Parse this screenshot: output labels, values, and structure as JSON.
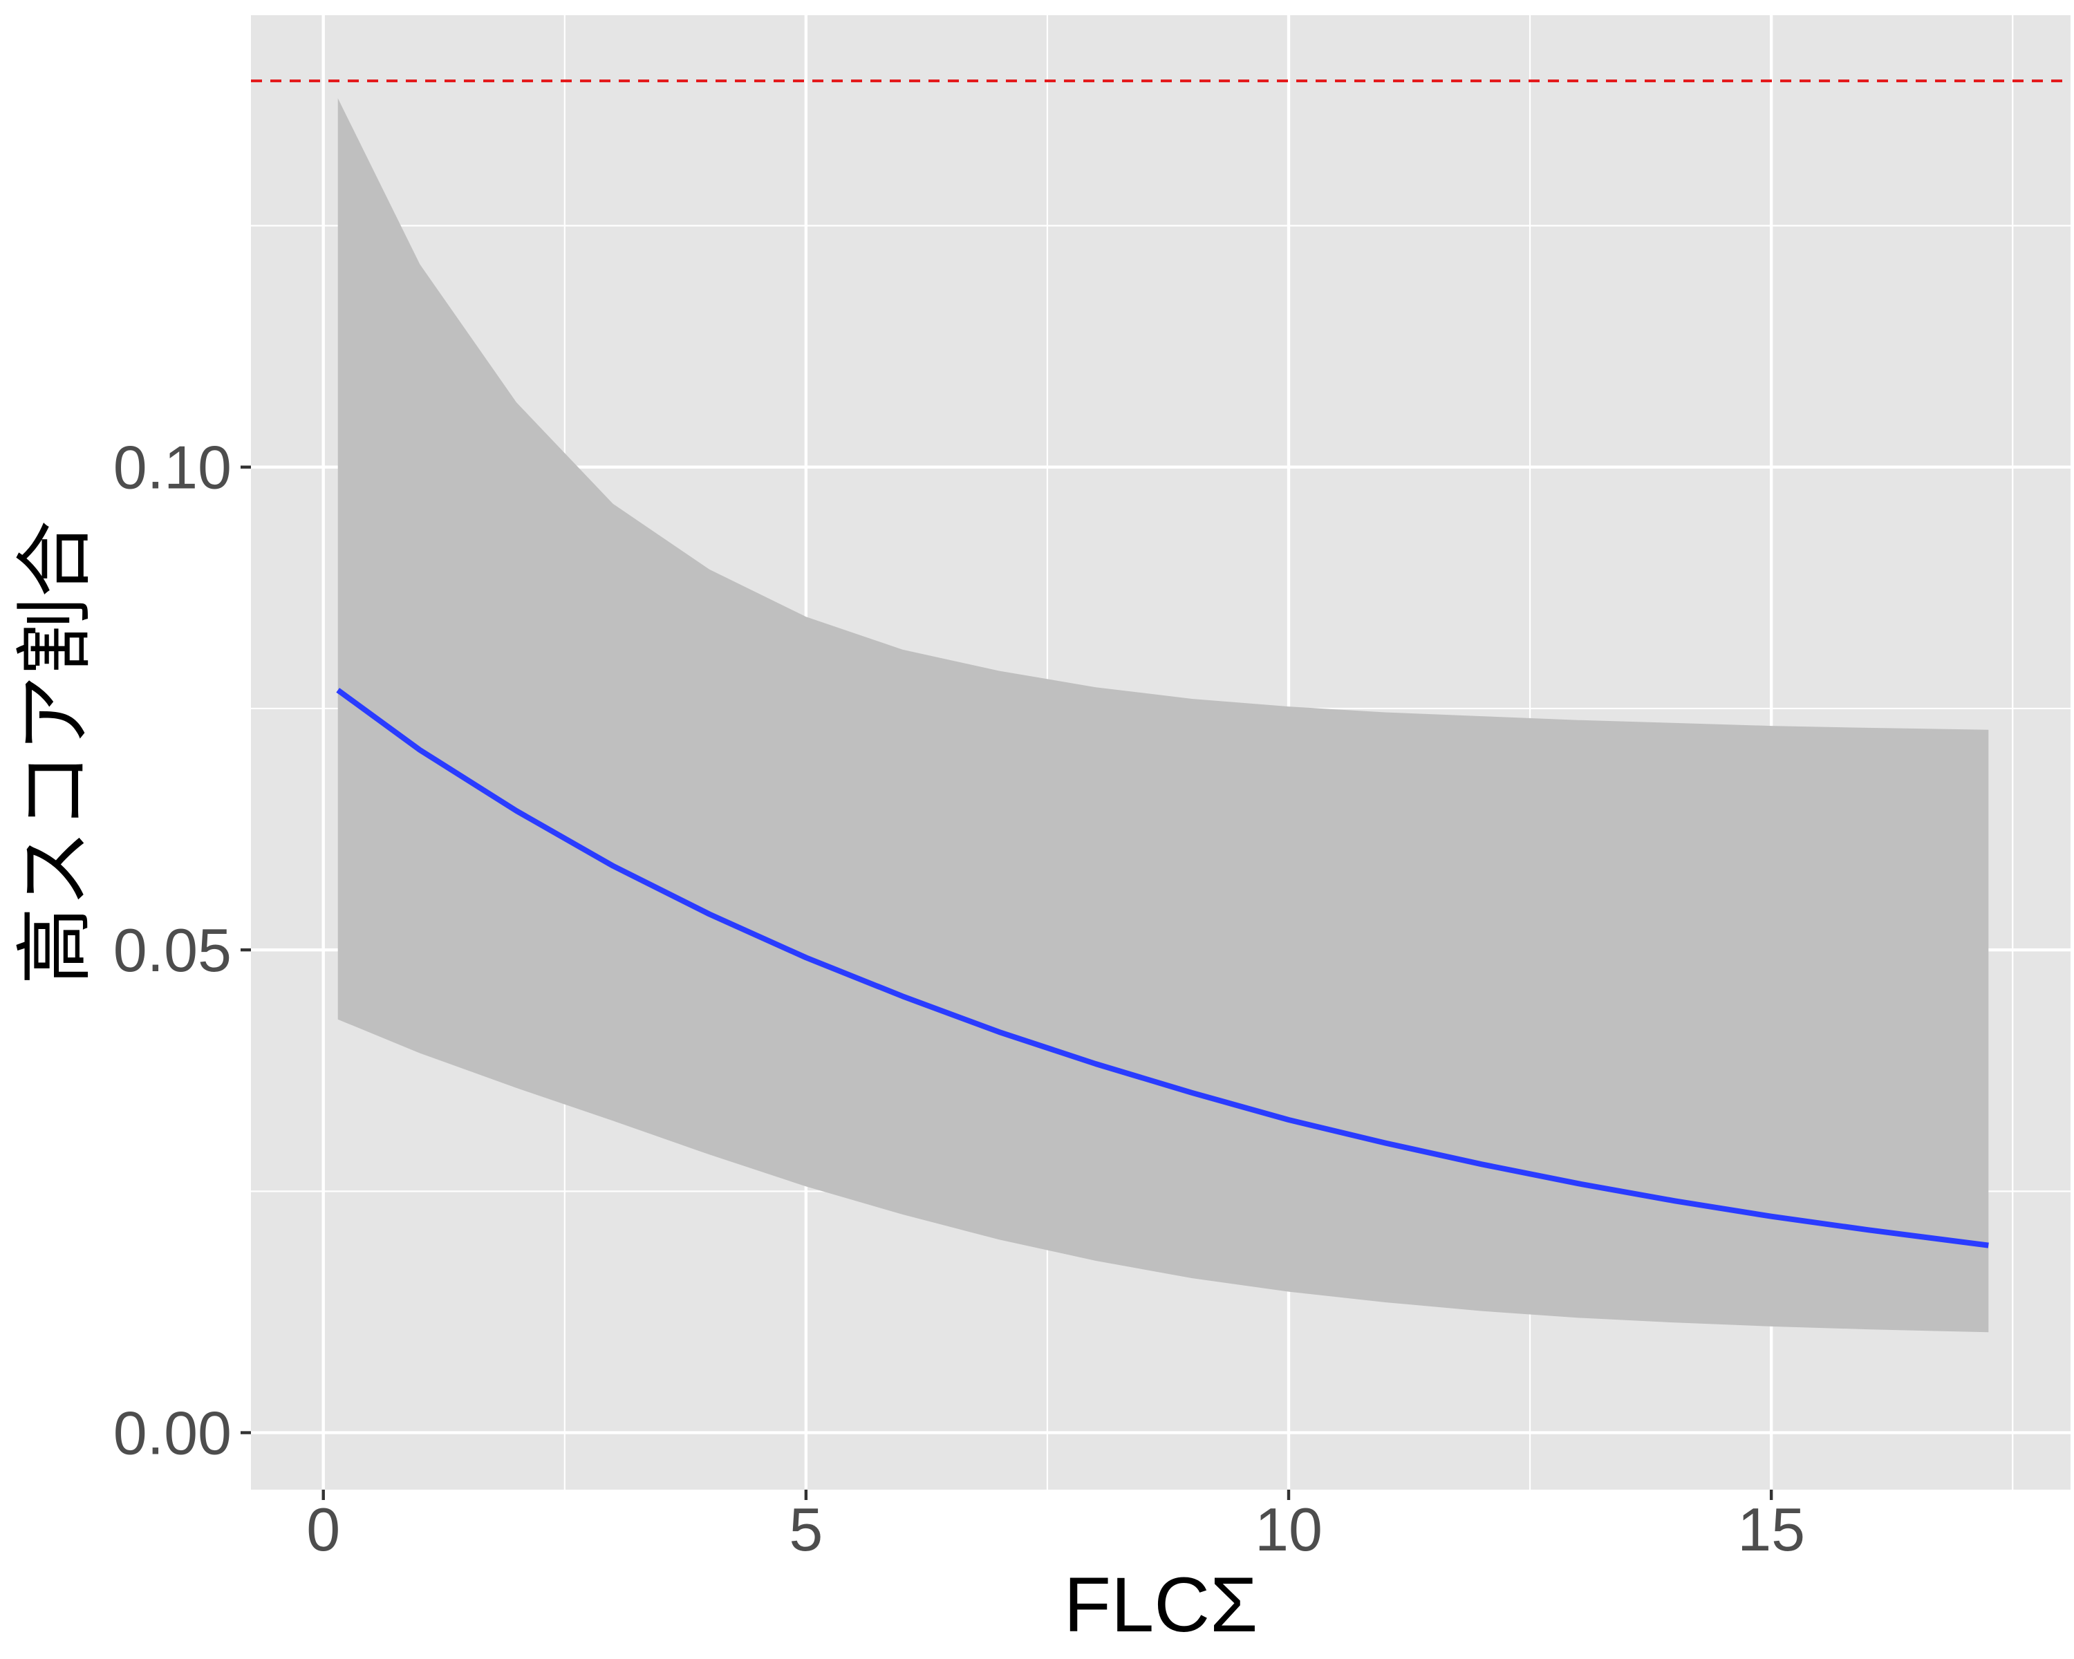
{
  "chart_data": {
    "type": "line",
    "xlabel": "FLCΣ",
    "ylabel": "高スコア割合",
    "xlim": [
      -0.75,
      18.1
    ],
    "ylim": [
      -0.0059,
      0.1468
    ],
    "x_ticks": [
      0,
      5,
      10,
      15
    ],
    "x_tick_labels": [
      "0",
      "5",
      "10",
      "15"
    ],
    "y_ticks": [
      0.0,
      0.05,
      0.1
    ],
    "y_tick_labels": [
      "0.00",
      "0.05",
      "0.10"
    ],
    "grid": true,
    "reference_line": {
      "y": 0.14,
      "style": "dashed",
      "color": "#e41a1c"
    },
    "series": [
      {
        "x": [
          0.15,
          1,
          2,
          3,
          4,
          5,
          6,
          7,
          8,
          9,
          10,
          11,
          12,
          13,
          14,
          15,
          16,
          17.25
        ],
        "values": [
          0.0769,
          0.0707,
          0.0644,
          0.0587,
          0.0537,
          0.0492,
          0.0452,
          0.0415,
          0.0382,
          0.0352,
          0.0324,
          0.03,
          0.0278,
          0.0258,
          0.024,
          0.0224,
          0.021,
          0.0194
        ],
        "lower": [
          0.0428,
          0.0393,
          0.0357,
          0.0323,
          0.0288,
          0.0255,
          0.0226,
          0.02,
          0.0178,
          0.016,
          0.0146,
          0.0135,
          0.0126,
          0.0119,
          0.0114,
          0.011,
          0.0107,
          0.0104
        ],
        "upper": [
          0.1382,
          0.121,
          0.1067,
          0.0962,
          0.0894,
          0.0845,
          0.0811,
          0.0789,
          0.0772,
          0.076,
          0.0752,
          0.0746,
          0.0742,
          0.0738,
          0.0735,
          0.0732,
          0.073,
          0.0728
        ]
      }
    ],
    "colors": {
      "panel_background": "#e5e5e5",
      "grid": "#ffffff",
      "line": "#2a3cff",
      "ribbon": "#bfbfbf",
      "reference_line": "#e41a1c"
    }
  }
}
